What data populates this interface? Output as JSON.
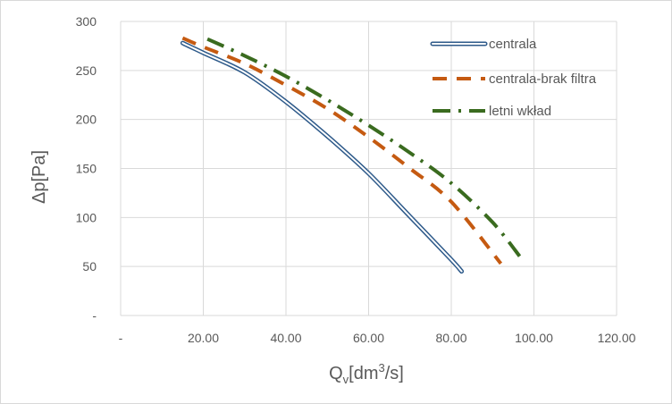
{
  "chart_data": {
    "type": "line",
    "title": "",
    "xlabel_main": "Q",
    "xlabel_sub": "v",
    "xlabel_unit": "[dm",
    "xlabel_sup": "3",
    "xlabel_tail": "/s]",
    "ylabel": "Δp[Pa]",
    "xlim": [
      0,
      120
    ],
    "ylim": [
      0,
      300
    ],
    "x_ticks": [
      {
        "value": 0,
        "label": "-"
      },
      {
        "value": 20,
        "label": "20.00"
      },
      {
        "value": 40,
        "label": "40.00"
      },
      {
        "value": 60,
        "label": "60.00"
      },
      {
        "value": 80,
        "label": "80.00"
      },
      {
        "value": 100,
        "label": "100.00"
      },
      {
        "value": 120,
        "label": "120.00"
      }
    ],
    "y_ticks": [
      {
        "value": 0,
        "label": "-"
      },
      {
        "value": 50,
        "label": "50"
      },
      {
        "value": 100,
        "label": "100"
      },
      {
        "value": 150,
        "label": "150"
      },
      {
        "value": 200,
        "label": "200"
      },
      {
        "value": 250,
        "label": "250"
      },
      {
        "value": 300,
        "label": "300"
      }
    ],
    "grid": true,
    "legend_position": "top-right",
    "series": [
      {
        "name": "centrala",
        "color": "#2e5a8a",
        "style": "double",
        "x": [
          15,
          20,
          30,
          40,
          50,
          60,
          70,
          80,
          82.5
        ],
        "y": [
          278,
          268,
          248,
          218,
          183,
          145,
          101,
          57,
          45
        ]
      },
      {
        "name": "centrala-brak filtra",
        "color": "#c55a11",
        "style": "dash",
        "x": [
          15,
          20,
          30,
          40,
          50,
          60,
          70,
          80,
          92
        ],
        "y": [
          283,
          274,
          257,
          235,
          211,
          182,
          150,
          116,
          53
        ]
      },
      {
        "name": "letni wkład",
        "color": "#3a6b1f",
        "style": "dashdot",
        "x": [
          21,
          30,
          40,
          50,
          60,
          70,
          80,
          90,
          97
        ],
        "y": [
          282,
          265,
          244,
          220,
          194,
          166,
          135,
          95,
          58
        ]
      }
    ]
  }
}
